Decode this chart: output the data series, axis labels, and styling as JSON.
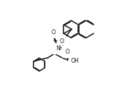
{
  "bg_color": "#ffffff",
  "line_color": "#1a1a1a",
  "lw": 1.15,
  "figsize": [
    1.62,
    1.55
  ],
  "dpi": 100,
  "xlim": [
    0,
    10
  ],
  "ylim": [
    0,
    10
  ],
  "fs": 5.6
}
